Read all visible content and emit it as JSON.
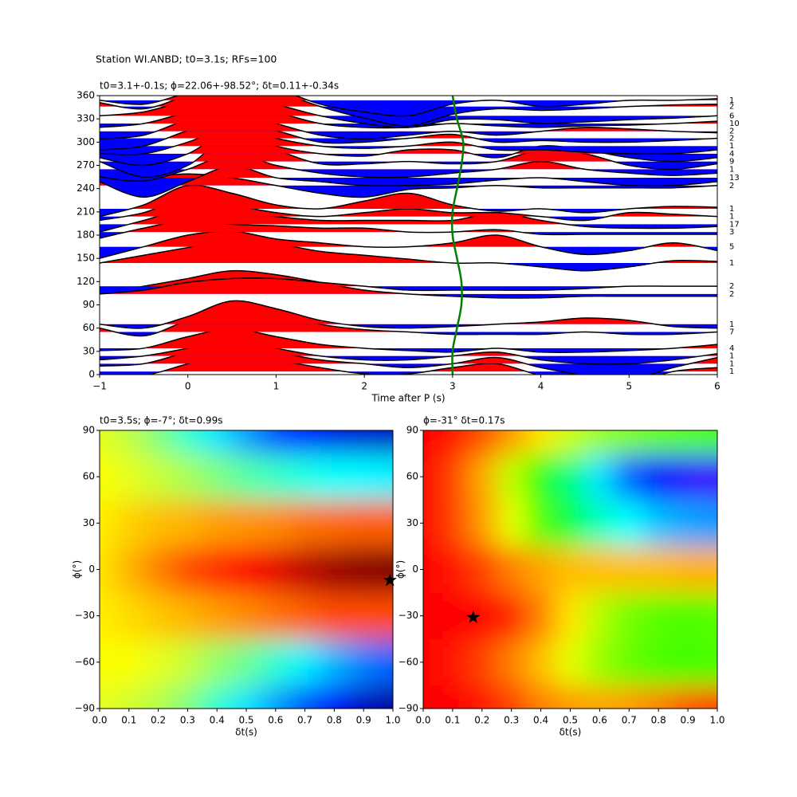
{
  "title": "Station WI.ANBD; t0=3.1s; RFs=100",
  "chart_data": [
    {
      "type": "wiggle",
      "title": "t0=3.1+-0.1s; ϕ=22.06+-98.52°; δt=0.11+-0.34s",
      "xlabel": "Time after P (s)",
      "xlim": [
        -1,
        6
      ],
      "xticks": [
        {
          "value": -1,
          "label": "−1"
        },
        0,
        1,
        2,
        3,
        4,
        5,
        6
      ],
      "ylim": [
        0,
        360
      ],
      "yticks": [
        0,
        30,
        60,
        90,
        120,
        150,
        180,
        210,
        240,
        270,
        300,
        330,
        360
      ],
      "positive_color": "#ff0000",
      "negative_color": "#0000ff",
      "times": [
        -1,
        -0.5,
        0,
        0.5,
        1,
        1.5,
        2,
        2.5,
        3,
        3.5,
        4,
        4.5,
        5,
        5.5,
        6
      ],
      "traces": [
        {
          "baz": 354,
          "count": 1,
          "amplitude": [
            0,
            -5,
            10,
            25,
            15,
            -5,
            -15,
            -20,
            -5,
            0,
            -8,
            -5,
            0,
            0,
            2
          ]
        },
        {
          "baz": 346,
          "count": 2,
          "amplitude": [
            5,
            -3,
            15,
            35,
            20,
            0,
            -15,
            -25,
            -10,
            -3,
            -5,
            -3,
            0,
            2,
            3
          ]
        },
        {
          "baz": 334,
          "count": 6,
          "amplitude": [
            0,
            5,
            20,
            30,
            15,
            0,
            -10,
            -15,
            -5,
            -5,
            -10,
            -8,
            -5,
            -3,
            0
          ]
        },
        {
          "baz": 324,
          "count": 10,
          "amplitude": [
            -5,
            0,
            15,
            30,
            15,
            0,
            -5,
            -5,
            0,
            -3,
            -5,
            -3,
            -2,
            0,
            3
          ]
        },
        {
          "baz": 314,
          "count": 2,
          "amplitude": [
            -10,
            -5,
            15,
            25,
            10,
            -5,
            -10,
            -5,
            0,
            -5,
            0,
            5,
            3,
            0,
            -2
          ]
        },
        {
          "baz": 305,
          "count": 2,
          "amplitude": [
            -15,
            -10,
            10,
            25,
            10,
            -5,
            -5,
            0,
            5,
            -5,
            -3,
            -5,
            -5,
            -3,
            0
          ]
        },
        {
          "baz": 295,
          "count": 1,
          "amplitude": [
            -10,
            -10,
            5,
            25,
            10,
            0,
            -3,
            0,
            5,
            -5,
            -5,
            -8,
            -10,
            -10,
            -5
          ]
        },
        {
          "baz": 285,
          "count": 4,
          "amplitude": [
            -5,
            -15,
            0,
            30,
            10,
            0,
            -3,
            5,
            5,
            -5,
            10,
            5,
            -5,
            -10,
            -5
          ]
        },
        {
          "baz": 275,
          "count": 9,
          "amplitude": [
            0,
            -20,
            -5,
            35,
            15,
            -3,
            -3,
            0,
            -3,
            0,
            15,
            10,
            -5,
            -10,
            -3
          ]
        },
        {
          "baz": 265,
          "count": 1,
          "amplitude": [
            -10,
            -15,
            0,
            20,
            5,
            -5,
            -10,
            -10,
            -5,
            0,
            10,
            0,
            -5,
            -8,
            -5
          ]
        },
        {
          "baz": 254,
          "count": 13,
          "amplitude": [
            -5,
            -25,
            -5,
            15,
            0,
            -5,
            -10,
            -10,
            -8,
            -3,
            0,
            -5,
            -10,
            -10,
            -5
          ]
        },
        {
          "baz": 244,
          "count": 2,
          "amplitude": [
            5,
            10,
            15,
            10,
            0,
            -10,
            -15,
            -5,
            -3,
            0,
            -3,
            -3,
            -3,
            -3,
            0
          ]
        },
        {
          "baz": 214,
          "count": 1,
          "amplitude": [
            -10,
            5,
            30,
            20,
            5,
            0,
            10,
            20,
            5,
            -3,
            0,
            -5,
            0,
            3,
            2
          ]
        },
        {
          "baz": 204,
          "count": 1,
          "amplitude": [
            -5,
            5,
            25,
            15,
            5,
            0,
            5,
            10,
            5,
            5,
            0,
            -5,
            5,
            3,
            0
          ]
        },
        {
          "baz": 194,
          "count": 17,
          "amplitude": [
            -10,
            5,
            20,
            15,
            10,
            5,
            5,
            5,
            5,
            15,
            5,
            -3,
            -5,
            -5,
            -3
          ]
        },
        {
          "baz": 184,
          "count": 3,
          "amplitude": [
            -8,
            5,
            15,
            10,
            8,
            5,
            5,
            0,
            0,
            3,
            -3,
            -3,
            -3,
            -3,
            -3
          ]
        },
        {
          "baz": 165,
          "count": 5,
          "amplitude": [
            -15,
            0,
            15,
            20,
            10,
            5,
            0,
            0,
            5,
            15,
            0,
            -10,
            -5,
            5,
            -5
          ]
        },
        {
          "baz": 144,
          "count": 1,
          "amplitude": [
            0,
            10,
            20,
            30,
            25,
            15,
            10,
            5,
            0,
            0,
            -5,
            -10,
            -5,
            3,
            2
          ]
        },
        {
          "baz": 114,
          "count": 2,
          "amplitude": [
            -10,
            -5,
            5,
            10,
            10,
            5,
            0,
            -5,
            -5,
            -5,
            -5,
            -3,
            0,
            0,
            0
          ]
        },
        {
          "baz": 104,
          "count": 2,
          "amplitude": [
            0,
            10,
            20,
            30,
            25,
            15,
            5,
            0,
            -3,
            -5,
            -5,
            -3,
            -3,
            -3,
            -3
          ]
        },
        {
          "baz": 65,
          "count": 1,
          "amplitude": [
            0,
            -5,
            10,
            30,
            20,
            5,
            -3,
            -5,
            -3,
            0,
            3,
            8,
            5,
            -3,
            -5
          ]
        },
        {
          "baz": 55,
          "count": 7,
          "amplitude": [
            5,
            -5,
            15,
            30,
            25,
            10,
            3,
            0,
            -3,
            -3,
            -3,
            0,
            -3,
            -3,
            0
          ]
        },
        {
          "baz": 34,
          "count": 4,
          "amplitude": [
            -3,
            0,
            15,
            25,
            15,
            5,
            0,
            -3,
            -5,
            0,
            -5,
            -5,
            -3,
            0,
            5
          ]
        },
        {
          "baz": 24,
          "count": 1,
          "amplitude": [
            -5,
            0,
            10,
            20,
            10,
            0,
            -5,
            -5,
            0,
            5,
            -5,
            -10,
            -10,
            -5,
            3
          ]
        },
        {
          "baz": 14,
          "count": 1,
          "amplitude": [
            -3,
            0,
            15,
            25,
            15,
            5,
            0,
            -5,
            0,
            8,
            -5,
            -15,
            -20,
            -5,
            8
          ]
        },
        {
          "baz": 4,
          "count": 1,
          "amplitude": [
            -5,
            -5,
            10,
            25,
            15,
            5,
            -3,
            -3,
            5,
            10,
            -5,
            -10,
            -15,
            0,
            5
          ]
        }
      ],
      "t0_curve": {
        "color": "#008000",
        "baz": [
          0,
          30,
          60,
          90,
          120,
          150,
          180,
          210,
          240,
          270,
          300,
          330,
          360
        ],
        "t": [
          3,
          3.0,
          3.05,
          3.1,
          3.1,
          3.05,
          3.0,
          3.0,
          3.05,
          3.1,
          3.12,
          3.05,
          3.0
        ]
      }
    },
    {
      "type": "heatmap",
      "title": "t0=3.5s; ϕ=-7°; δt=0.99s",
      "xlabel": "δt(s)",
      "ylabel": "ϕ(°)",
      "colormap": "jet",
      "xlim": [
        0,
        1
      ],
      "ylim": [
        -90,
        90
      ],
      "xticks": [
        {
          "value": 0,
          "label": "0.0"
        },
        0.1,
        0.2,
        0.3,
        0.4,
        0.5,
        0.6,
        0.7,
        0.8,
        0.9,
        {
          "value": 1,
          "label": "1.0"
        }
      ],
      "yticks": [
        {
          "value": -90,
          "label": "−90"
        },
        {
          "value": -60,
          "label": "−60"
        },
        {
          "value": -30,
          "label": "−30"
        },
        0,
        30,
        60,
        90
      ],
      "dt": [
        0,
        0.1,
        0.2,
        0.3,
        0.4,
        0.5,
        0.6,
        0.7,
        0.8,
        0.9,
        1
      ],
      "phi": [
        -90,
        -60,
        -30,
        0,
        30,
        60,
        90
      ],
      "z": [
        [
          0.6,
          0.58,
          0.55,
          0.5,
          0.42,
          0.35,
          0.28,
          0.2,
          0.12,
          0.06,
          0.03
        ],
        [
          0.62,
          0.62,
          0.6,
          0.57,
          0.52,
          0.48,
          0.42,
          0.36,
          0.3,
          0.25,
          0.22
        ],
        [
          0.64,
          0.66,
          0.68,
          0.7,
          0.72,
          0.74,
          0.76,
          0.78,
          0.8,
          0.8,
          0.8
        ],
        [
          0.65,
          0.7,
          0.75,
          0.8,
          0.83,
          0.87,
          0.9,
          0.94,
          0.97,
          0.99,
          1.0
        ],
        [
          0.64,
          0.67,
          0.69,
          0.7,
          0.72,
          0.73,
          0.74,
          0.76,
          0.77,
          0.78,
          0.78
        ],
        [
          0.62,
          0.6,
          0.57,
          0.54,
          0.5,
          0.46,
          0.43,
          0.4,
          0.38,
          0.37,
          0.36
        ],
        [
          0.6,
          0.56,
          0.5,
          0.42,
          0.35,
          0.28,
          0.2,
          0.15,
          0.1,
          0.08,
          0.07
        ]
      ],
      "star": {
        "x": 0.99,
        "y": -7
      }
    },
    {
      "type": "heatmap",
      "title": "ϕ=-31° δt=0.17s",
      "xlabel": "δt(s)",
      "ylabel": "ϕ(°)",
      "colormap": "hsv",
      "xlim": [
        0,
        1
      ],
      "ylim": [
        -90,
        90
      ],
      "xticks": [
        {
          "value": 0,
          "label": "0.0"
        },
        0.1,
        0.2,
        0.3,
        0.4,
        0.5,
        0.6,
        0.7,
        0.8,
        0.9,
        {
          "value": 1,
          "label": "1.0"
        }
      ],
      "yticks": [
        {
          "value": -90,
          "label": "−90"
        },
        {
          "value": -60,
          "label": "−60"
        },
        {
          "value": -30,
          "label": "−30"
        },
        0,
        30,
        60,
        90
      ],
      "dt": [
        0,
        0.1,
        0.2,
        0.3,
        0.4,
        0.5,
        0.6,
        0.7,
        0.8,
        0.9,
        1
      ],
      "phi": [
        -90,
        -60,
        -30,
        0,
        30,
        60,
        90
      ],
      "z": [
        [
          1,
          1,
          0.98,
          0.95,
          0.9,
          0.88,
          0.87,
          0.88,
          0.9,
          0.93,
          0.95
        ],
        [
          1,
          0.98,
          0.95,
          0.9,
          0.85,
          0.78,
          0.72,
          0.68,
          0.66,
          0.65,
          0.66
        ],
        [
          1,
          1,
          1,
          0.97,
          0.9,
          0.82,
          0.74,
          0.69,
          0.67,
          0.66,
          0.67
        ],
        [
          1,
          0.98,
          0.95,
          0.9,
          0.87,
          0.85,
          0.85,
          0.85,
          0.85,
          0.86,
          0.86
        ],
        [
          1,
          0.95,
          0.88,
          0.78,
          0.66,
          0.55,
          0.45,
          0.4,
          0.35,
          0.33,
          0.32
        ],
        [
          1,
          0.95,
          0.87,
          0.75,
          0.62,
          0.5,
          0.38,
          0.28,
          0.2,
          0.16,
          0.15
        ],
        [
          1,
          0.98,
          0.94,
          0.88,
          0.82,
          0.76,
          0.72,
          0.7,
          0.68,
          0.67,
          0.66
        ]
      ],
      "star": {
        "x": 0.17,
        "y": -31
      }
    }
  ]
}
